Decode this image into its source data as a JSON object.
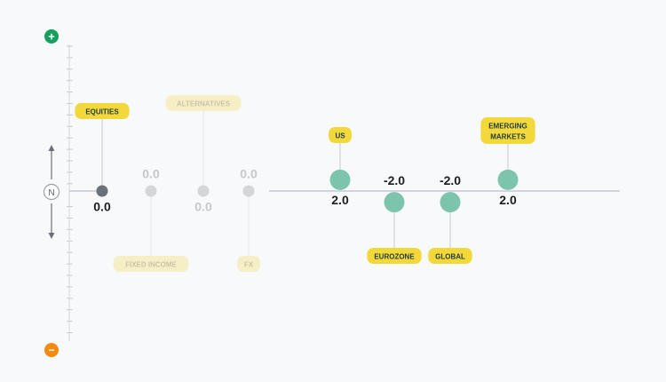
{
  "chart_data": {
    "type": "scatter",
    "description_axis": {
      "top_symbol": "+",
      "bottom_symbol": "−",
      "neutral_label": "N"
    },
    "colors": {
      "positive": "#16a05c",
      "negative": "#f48a12",
      "active_marker": "#7cc4ac",
      "selected_marker": "#6b7178",
      "inactive_marker": "#d4d6da",
      "label_fill": "#f2d83a",
      "label_fill_inactive": "#f6efc6",
      "label_text": "#1f3b3a",
      "label_text_inactive": "#c9c4a8",
      "value_text": "#1d1d1d",
      "value_text_inactive": "#c6c8cc",
      "baseline": "#c5c8ce"
    },
    "points": [
      {
        "id": "equities",
        "label": [
          "EQUITIES"
        ],
        "value": 0.0,
        "value_text": "0.0",
        "state": "selected",
        "label_side": "above",
        "value_side": "below"
      },
      {
        "id": "fixed-income",
        "label": [
          "FIXED INCOME"
        ],
        "value": 0.0,
        "value_text": "0.0",
        "state": "inactive",
        "label_side": "below",
        "value_side": "above"
      },
      {
        "id": "alternatives",
        "label": [
          "ALTERNATIVES"
        ],
        "value": 0.0,
        "value_text": "0.0",
        "state": "inactive",
        "label_side": "above",
        "value_side": "below"
      },
      {
        "id": "fx",
        "label": [
          "FX"
        ],
        "value": 0.0,
        "value_text": "0.0",
        "state": "inactive",
        "label_side": "below",
        "value_side": "above"
      },
      {
        "id": "us",
        "label": [
          "US"
        ],
        "value": 2.0,
        "value_text": "2.0",
        "state": "active",
        "label_side": "above",
        "value_side": "below"
      },
      {
        "id": "eurozone",
        "label": [
          "EUROZONE"
        ],
        "value": -2.0,
        "value_text": "-2.0",
        "state": "active",
        "label_side": "below",
        "value_side": "above"
      },
      {
        "id": "global",
        "label": [
          "GLOBAL"
        ],
        "value": -2.0,
        "value_text": "-2.0",
        "state": "active",
        "label_side": "below",
        "value_side": "above"
      },
      {
        "id": "emerging-markets",
        "label": [
          "EMERGING",
          "MARKETS"
        ],
        "value": 2.0,
        "value_text": "2.0",
        "state": "active",
        "label_side": "above",
        "value_side": "below"
      }
    ]
  }
}
